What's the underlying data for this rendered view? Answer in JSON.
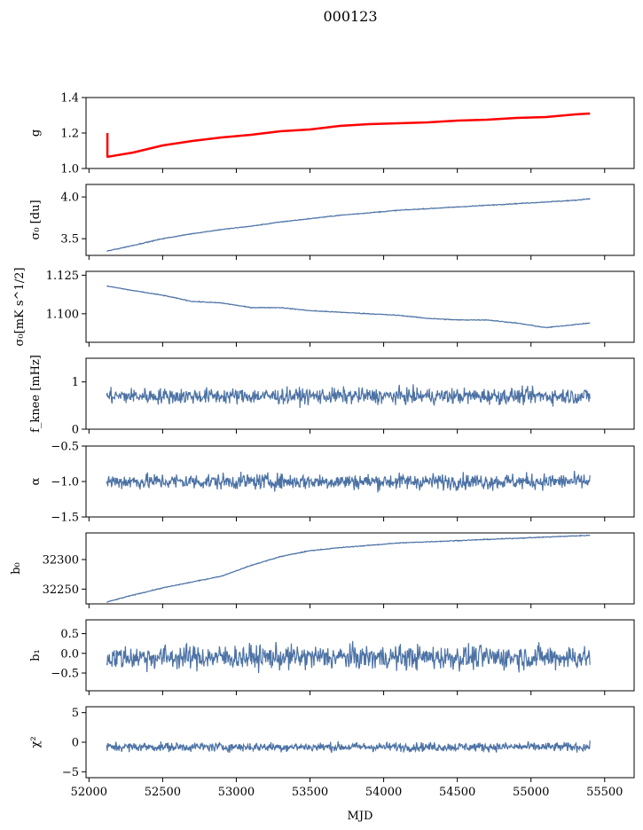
{
  "title": "000123",
  "chart_data": {
    "type": "line",
    "xlabel": "MJD",
    "xlim": [
      51980,
      55700
    ],
    "xticks": [
      52000,
      52500,
      53000,
      53500,
      54000,
      54500,
      55000,
      55500
    ],
    "x_start": 52120,
    "x_end": 55400,
    "colors": {
      "series": "#4c72a5",
      "fit": "#ff0000"
    },
    "panels": [
      {
        "ylabel": "g",
        "ylim": [
          1.0,
          1.4
        ],
        "yticks": [
          "1.0",
          "1.2",
          "1.4"
        ],
        "series": [
          {
            "x": [
              52120,
              52300,
              52500,
              52700,
              52900,
              53100,
              53300,
              53500,
              53700,
              53900,
              54100,
              54300,
              54500,
              54700,
              54900,
              55100,
              55300,
              55400
            ],
            "values": [
              1.065,
              1.09,
              1.13,
              1.155,
              1.175,
              1.19,
              1.21,
              1.22,
              1.24,
              1.25,
              1.255,
              1.26,
              1.27,
              1.275,
              1.285,
              1.29,
              1.305,
              1.31
            ]
          }
        ],
        "fit": {
          "x": [
            52120,
            52300,
            52500,
            52700,
            52900,
            53100,
            53300,
            53500,
            53700,
            53900,
            54100,
            54300,
            54500,
            54700,
            54900,
            55100,
            55300,
            55400
          ],
          "values": [
            1.065,
            1.09,
            1.13,
            1.155,
            1.175,
            1.19,
            1.21,
            1.22,
            1.24,
            1.25,
            1.255,
            1.26,
            1.27,
            1.275,
            1.285,
            1.29,
            1.305,
            1.31
          ],
          "spike": [
            52125,
            1.065,
            1.2
          ]
        }
      },
      {
        "ylabel": "σ₀ [du]",
        "ylim": [
          3.3,
          4.15
        ],
        "yticks": [
          "3.5",
          "4.0"
        ],
        "series": [
          {
            "x": [
              52120,
              52300,
              52500,
              52700,
              52900,
              53100,
              53300,
              53500,
              53700,
              53900,
              54100,
              54300,
              54500,
              54700,
              54900,
              55100,
              55300,
              55400
            ],
            "values": [
              3.35,
              3.42,
              3.5,
              3.56,
              3.61,
              3.65,
              3.7,
              3.74,
              3.78,
              3.81,
              3.84,
              3.86,
              3.88,
              3.9,
              3.92,
              3.94,
              3.96,
              3.98
            ]
          }
        ]
      },
      {
        "ylabel": "σ₀[mK s^1/2]",
        "ylim": [
          1.0815,
          1.1275
        ],
        "yticks": [
          "1.100",
          "1.125"
        ],
        "series": [
          {
            "x": [
              52120,
              52300,
              52500,
              52700,
              52900,
              53100,
              53300,
              53500,
              53700,
              53900,
              54100,
              54300,
              54500,
              54700,
              54900,
              55100,
              55300,
              55400
            ],
            "values": [
              1.118,
              1.115,
              1.112,
              1.108,
              1.107,
              1.104,
              1.104,
              1.102,
              1.101,
              1.1,
              1.099,
              1.097,
              1.096,
              1.096,
              1.094,
              1.091,
              1.093,
              1.094
            ]
          }
        ]
      },
      {
        "ylabel": "f_knee [mHz]",
        "ylim": [
          0,
          1.5
        ],
        "yticks": [
          "0",
          "1"
        ],
        "series": [
          {
            "mean": 0.7,
            "noise": 0.12
          }
        ]
      },
      {
        "ylabel": "α",
        "ylim": [
          -1.5,
          -0.5
        ],
        "yticks": [
          "-1.5",
          "-1.0",
          "-0.5"
        ],
        "series": [
          {
            "mean": -1.0,
            "noise": 0.08
          }
        ]
      },
      {
        "ylabel": "b₀",
        "ylim": [
          32225,
          32345
        ],
        "yticks": [
          "32250",
          "32300"
        ],
        "series": [
          {
            "x": [
              52120,
              52300,
              52500,
              52700,
              52900,
              53100,
              53300,
              53500,
              53700,
              53900,
              54100,
              54300,
              54500,
              54700,
              54900,
              55100,
              55300,
              55400
            ],
            "values": [
              32228,
              32240,
              32252,
              32262,
              32272,
              32290,
              32305,
              32315,
              32320,
              32324,
              32328,
              32330,
              32332,
              32334,
              32336,
              32338,
              32340,
              32341
            ]
          }
        ]
      },
      {
        "ylabel": "b₁",
        "ylim": [
          -0.95,
          0.85
        ],
        "yticks": [
          "-0.5",
          "0.0",
          "0.5"
        ],
        "series": [
          {
            "mean": -0.1,
            "noise": 0.22
          }
        ]
      },
      {
        "ylabel": "χ²",
        "ylim": [
          -6,
          6
        ],
        "yticks": [
          "-5",
          "0",
          "5"
        ],
        "series": [
          {
            "mean": -0.8,
            "noise": 0.55
          }
        ]
      }
    ]
  }
}
